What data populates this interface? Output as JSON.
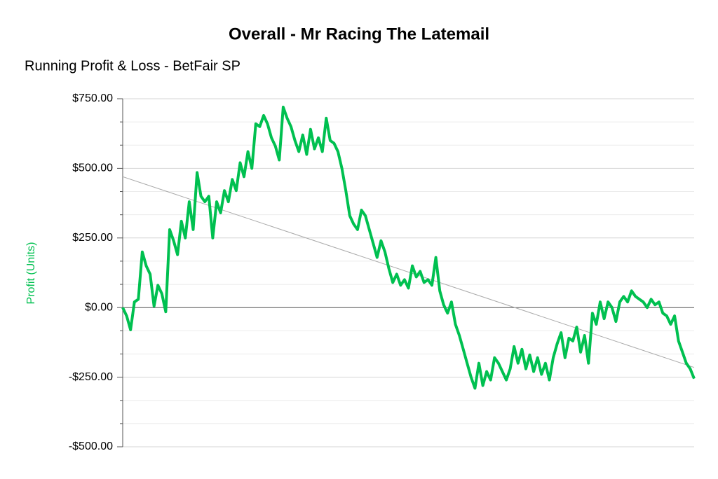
{
  "chart_data": {
    "type": "line",
    "title": "Overall - Mr Racing The Latemail",
    "subtitle": "Running Profit & Loss - BetFair SP",
    "y_label": "Profit (Units)",
    "categories": [
      null,
      null,
      null,
      null,
      null,
      null,
      null,
      null,
      null,
      null,
      null,
      null,
      null,
      null,
      null,
      null,
      null,
      null,
      null,
      null,
      null,
      null,
      null,
      null,
      null,
      null,
      null,
      null,
      null,
      null,
      null,
      null,
      null,
      null,
      null,
      null,
      null,
      null,
      null,
      null,
      null,
      null,
      null,
      null,
      null,
      null,
      null,
      null,
      null,
      null,
      null,
      null,
      null,
      null,
      null,
      null,
      null,
      null,
      null,
      null,
      null,
      null,
      null,
      null,
      null,
      null,
      null,
      null,
      null,
      null,
      null,
      null,
      null,
      null,
      null,
      null,
      null,
      null,
      null,
      null,
      null,
      null,
      null,
      null,
      null,
      null,
      null,
      null,
      null,
      null,
      null,
      null,
      null,
      null,
      null,
      null,
      null,
      null,
      null,
      null,
      null,
      null,
      null,
      null,
      null,
      null,
      null,
      null,
      null,
      null,
      null,
      null,
      null,
      null,
      null,
      null,
      null,
      null,
      null,
      null,
      null,
      null,
      null,
      null,
      null,
      null,
      null,
      null,
      null,
      null,
      null,
      null,
      null,
      null,
      null,
      null,
      null,
      null,
      null,
      null,
      null,
      null,
      null,
      null,
      null,
      null,
      null
    ],
    "series": [
      {
        "color": "#00c050",
        "values": [
          0,
          -30,
          -80,
          20,
          30,
          200,
          150,
          120,
          5,
          80,
          50,
          -15,
          280,
          240,
          190,
          310,
          250,
          380,
          280,
          485,
          400,
          380,
          400,
          250,
          380,
          340,
          420,
          380,
          460,
          420,
          520,
          470,
          560,
          500,
          660,
          650,
          690,
          660,
          610,
          580,
          530,
          720,
          680,
          650,
          600,
          560,
          620,
          550,
          640,
          570,
          610,
          560,
          680,
          600,
          590,
          560,
          500,
          420,
          330,
          300,
          280,
          350,
          330,
          280,
          230,
          180,
          240,
          200,
          140,
          90,
          120,
          80,
          100,
          70,
          150,
          110,
          130,
          90,
          100,
          80,
          180,
          60,
          10,
          -20,
          20,
          -60,
          -100,
          -150,
          -200,
          -250,
          -290,
          -200,
          -280,
          -230,
          -260,
          -180,
          -200,
          -230,
          -260,
          -220,
          -140,
          -200,
          -150,
          -220,
          -170,
          -230,
          -180,
          -240,
          -200,
          -260,
          -180,
          -130,
          -90,
          -180,
          -110,
          -120,
          -70,
          -160,
          -100,
          -200,
          -20,
          -60,
          20,
          -40,
          20,
          0,
          -50,
          20,
          40,
          20,
          60,
          40,
          30,
          20,
          0,
          30,
          10,
          20,
          -20,
          -30,
          -60,
          -30,
          -120,
          -160,
          -200,
          -220,
          -255
        ]
      }
    ],
    "trendline": {
      "color": "#aaaaaa",
      "values": [
        470,
        -215
      ]
    },
    "ylim": [
      -500,
      750
    ],
    "yticks": [
      {
        "value": -500,
        "label": "-$500.00"
      },
      {
        "value": -250,
        "label": "-$250.00"
      },
      {
        "value": 0,
        "label": "$0.00"
      },
      {
        "value": 250,
        "label": "$250.00"
      },
      {
        "value": 500,
        "label": "$500.00"
      },
      {
        "value": 750,
        "label": "$750.00"
      }
    ],
    "minor_yticks": [
      -416.67,
      -333.33,
      -166.67,
      -83.33,
      83.33,
      166.67,
      333.33,
      416.67,
      583.33,
      666.67
    ],
    "grid": true
  }
}
